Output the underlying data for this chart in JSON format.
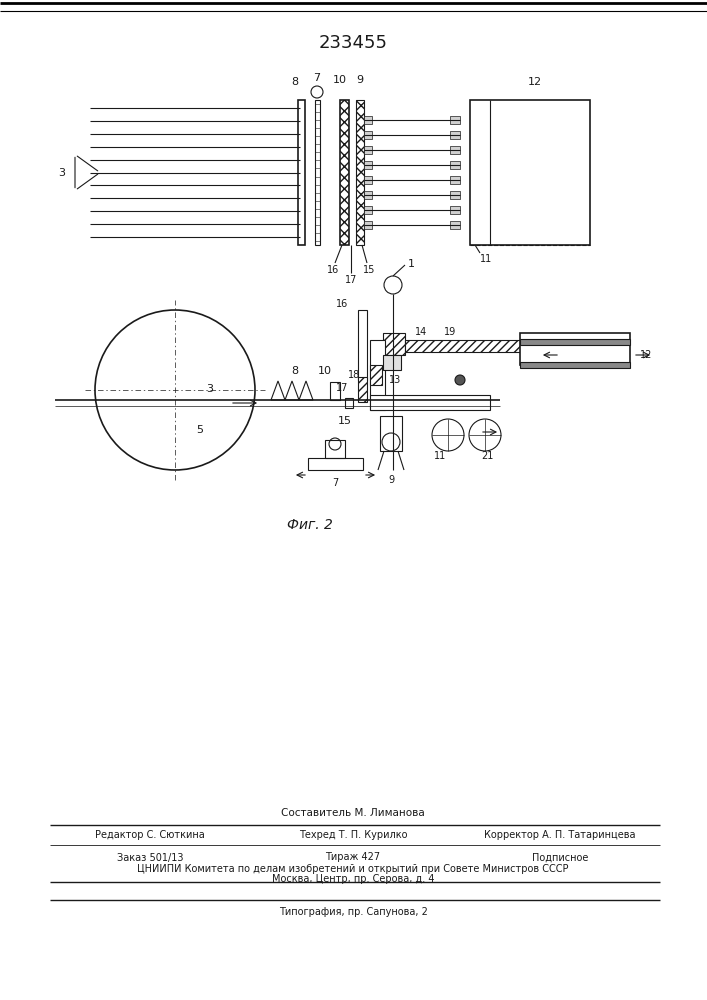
{
  "title": "233455",
  "bg_color": "#ffffff",
  "line_color": "#1a1a1a",
  "fig2_caption": "Фиг. 2",
  "footer_sestavitel": "Составитель М. Лиманова",
  "footer_row1_l": "Редактор С. Сюткина",
  "footer_row1_m": "Техред Т. П. Курилко",
  "footer_row1_r": "Корректор А. П. Татаринцева",
  "footer_zakaz": "Заказ 501/13",
  "footer_tirazh": "Тираж 427",
  "footer_podp": "Подписное",
  "footer_cniip1": "ЦНИИПИ Комитета по делам изобретений и открытий при Совете Министров СССР",
  "footer_cniip2": "Москва, Центр, пр. Серова, д. 4",
  "footer_tipog": "Типография, пр. Сапунова, 2"
}
